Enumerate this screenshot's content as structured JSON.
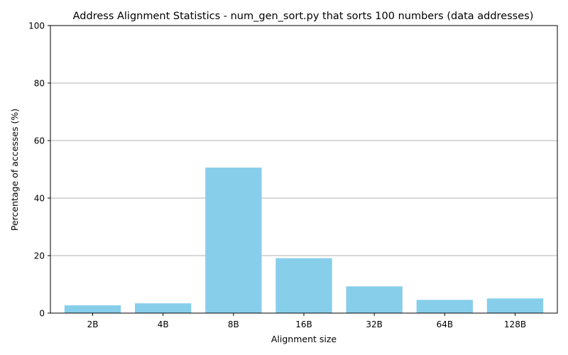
{
  "chart_data": {
    "type": "bar",
    "title": "Address Alignment Statistics - num_gen_sort.py that sorts 100 numbers (data addresses)",
    "xlabel": "Alignment size",
    "ylabel": "Percentage of accesses (%)",
    "categories": [
      "2B",
      "4B",
      "8B",
      "16B",
      "32B",
      "64B",
      "128B"
    ],
    "values": [
      2.7,
      3.4,
      50.6,
      19.1,
      9.3,
      4.6,
      5.1
    ],
    "ylim": [
      0,
      100
    ],
    "yticks": [
      0,
      20,
      40,
      60,
      80,
      100
    ],
    "grid": "horizontal",
    "bar_color": "#87ceeb"
  }
}
